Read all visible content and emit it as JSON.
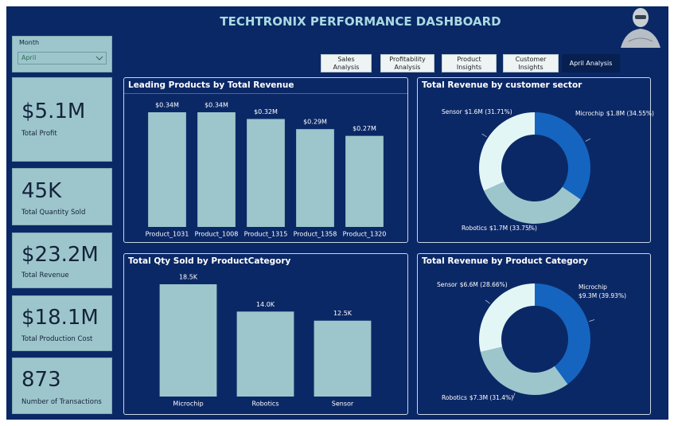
{
  "header": {
    "title": "TECHTRONIX PERFORMANCE DASHBOARD"
  },
  "slicer": {
    "label": "Month",
    "value": "April"
  },
  "nav": [
    "Sales Analysis",
    "Profitability Analysis",
    "Product Insights",
    "Customer Insights",
    "April Analysis"
  ],
  "kpis": [
    {
      "value": "$5.1M",
      "label": "Total Profit"
    },
    {
      "value": "45K",
      "label": "Total Quantity Sold"
    },
    {
      "value": "$23.2M",
      "label": "Total Revenue"
    },
    {
      "value": "$18.1M",
      "label": "Total Production Cost"
    },
    {
      "value": "873",
      "label": "Number of Transactions"
    }
  ],
  "chart_data": [
    {
      "type": "bar",
      "title": "Leading Products by Total Revenue",
      "categories": [
        "Product_1031",
        "Product_1008",
        "Product_1315",
        "Product_1358",
        "Product_1320"
      ],
      "values": [
        0.34,
        0.34,
        0.32,
        0.29,
        0.27
      ],
      "value_labels": [
        "$0.34M",
        "$0.34M",
        "$0.32M",
        "$0.29M",
        "$0.27M"
      ],
      "color": "#9dc6cc"
    },
    {
      "type": "pie",
      "title": "Total Revenue by customer sector",
      "categories": [
        "Microchip",
        "Robotics",
        "Sensor"
      ],
      "values": [
        34.55,
        33.75,
        31.71
      ],
      "value_labels": [
        "$1.8M (34.55%)",
        "$1.7M (33.75%)",
        "$1.6M (31.71%)"
      ],
      "colors": [
        "#1565c0",
        "#9dc6cc",
        "#e3f6f6"
      ]
    },
    {
      "type": "bar",
      "title": "Total Qty Sold by ProductCategory",
      "categories": [
        "Microchip",
        "Robotics",
        "Sensor"
      ],
      "values": [
        18.5,
        14.0,
        12.5
      ],
      "value_labels": [
        "18.5K",
        "14.0K",
        "12.5K"
      ],
      "color": "#9dc6cc"
    },
    {
      "type": "pie",
      "title": "Total Revenue by Product Category",
      "categories": [
        "Microchip",
        "Robotics",
        "Sensor"
      ],
      "values": [
        39.93,
        31.4,
        28.66
      ],
      "value_labels": [
        "$9.3M (39.93%)",
        "$7.3M (31.4%)",
        "$6.6M (28.66%)"
      ],
      "colors": [
        "#1565c0",
        "#9dc6cc",
        "#e3f6f6"
      ]
    }
  ]
}
